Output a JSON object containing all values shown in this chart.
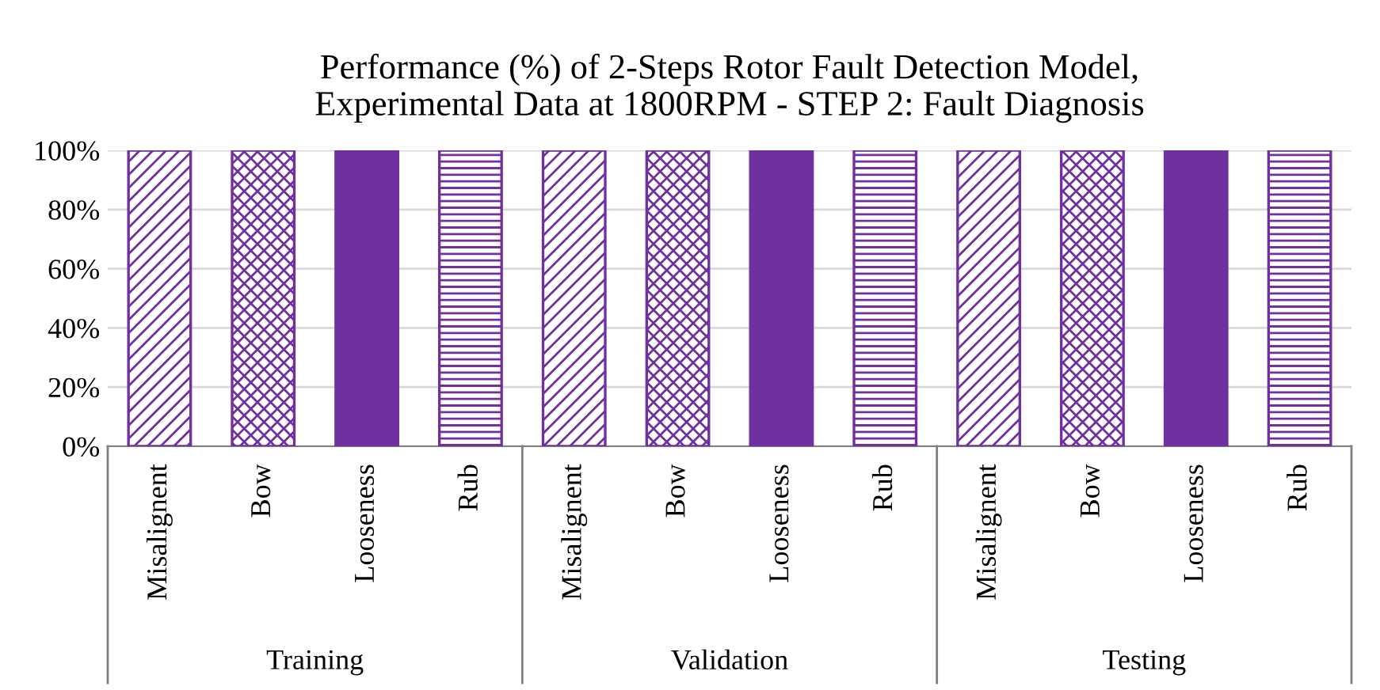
{
  "chart_data": {
    "type": "bar",
    "title": "Performance (%) of 2-Steps Rotor Fault Detection Model,\nExperimental Data at 1800RPM - STEP 2: Fault Diagnosis",
    "categories": [
      "Misalignent",
      "Bow",
      "Looseness",
      "Rub",
      "Misalignent",
      "Bow",
      "Looseness",
      "Rub",
      "Misalignent",
      "Bow",
      "Looseness",
      "Rub"
    ],
    "values": [
      100,
      100,
      100,
      100,
      100,
      100,
      100,
      100,
      100,
      100,
      100,
      100
    ],
    "color": "#7030a0",
    "ylim": [
      0,
      100
    ],
    "yticks": [
      {
        "value": 0,
        "label": "0%"
      },
      {
        "value": 20,
        "label": "20%"
      },
      {
        "value": 40,
        "label": "40%"
      },
      {
        "value": 60,
        "label": "60%"
      },
      {
        "value": 80,
        "label": "80%"
      },
      {
        "value": 100,
        "label": "100%"
      }
    ],
    "grid": "y",
    "annotations": [
      "Training",
      "Validation",
      "Testing"
    ]
  }
}
